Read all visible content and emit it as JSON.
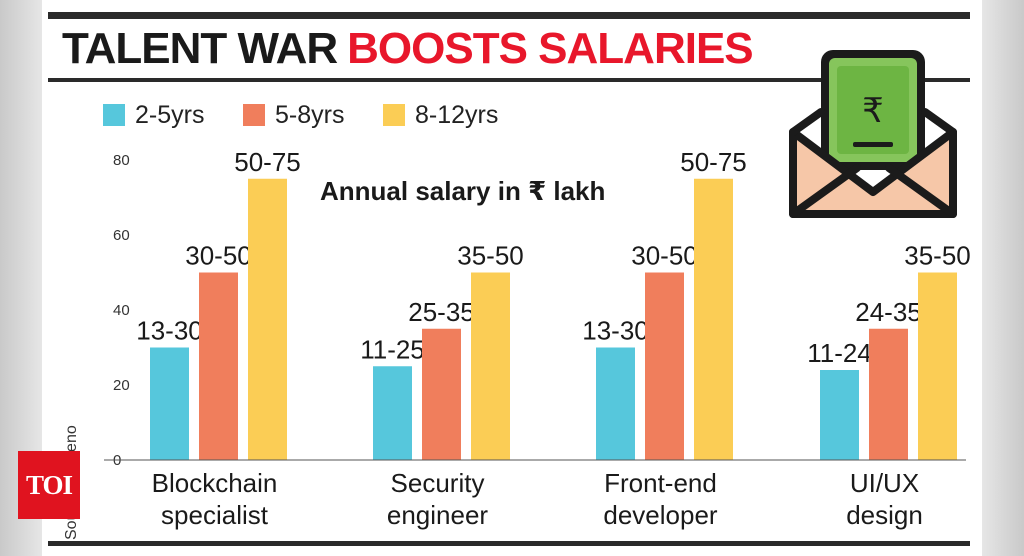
{
  "headline": {
    "part1": "TALENT WAR",
    "part2": "BOOSTS SALARIES"
  },
  "source_text": "Source: Xpheno",
  "watermark": "TOI",
  "chart_data": {
    "type": "bar",
    "title": "Annual salary in ₹ lakh",
    "categories": [
      [
        "Blockchain",
        "specialist"
      ],
      [
        "Security",
        "engineer"
      ],
      [
        "Front-end",
        "developer"
      ],
      [
        "UI/UX",
        "design"
      ]
    ],
    "series": [
      {
        "name": "2-5yrs",
        "color": "#56c7dc",
        "values": [
          30,
          25,
          30,
          24
        ],
        "labels": [
          "13-30",
          "11-25",
          "13-30",
          "11-24"
        ]
      },
      {
        "name": "5-8yrs",
        "color": "#f07e5c",
        "values": [
          50,
          35,
          50,
          35
        ],
        "labels": [
          "30-50",
          "25-35",
          "30-50",
          "24-35"
        ]
      },
      {
        "name": "8-12yrs",
        "color": "#fbcd55",
        "values": [
          75,
          50,
          75,
          50
        ],
        "labels": [
          "50-75",
          "35-50",
          "50-75",
          "35-50"
        ]
      }
    ],
    "yticks": [
      0,
      20,
      40,
      60,
      80
    ],
    "ylim": [
      0,
      80
    ],
    "grid": false
  }
}
